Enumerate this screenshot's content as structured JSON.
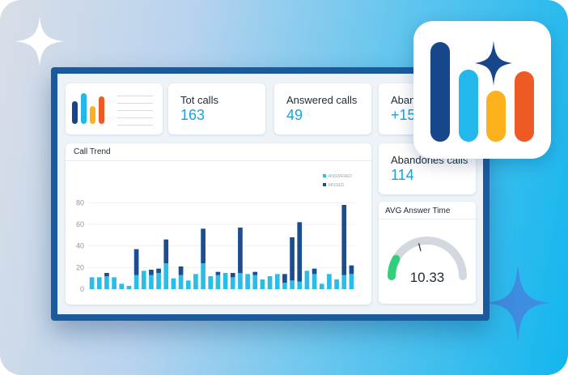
{
  "colors": {
    "answered": "#2bbde9",
    "missed": "#1c4e8f",
    "accent_blue": "#1aa3d6",
    "logo_navy": "#17478a",
    "logo_cyan": "#22b8ec",
    "logo_yellow": "#fbb21c",
    "logo_orange": "#ef5a24",
    "gauge_green": "#2fcf7c"
  },
  "icons": [
    "four-point-sparkle-icon",
    "app-logo-icon"
  ],
  "stats": [
    {
      "title": "Tot calls",
      "value": "163"
    },
    {
      "title": "Answered calls",
      "value": "49"
    },
    {
      "title": "Aban",
      "value": "+15"
    },
    {
      "title": "Abandones calls",
      "value": "114"
    }
  ],
  "trend_panel": {
    "title": "Call Trend"
  },
  "gauge": {
    "title": "AVG Answer Time",
    "value": "10.33",
    "level_fraction": 0.16
  },
  "chart_data": {
    "type": "bar",
    "stacked": true,
    "title": "Call Trend",
    "ylim": [
      0,
      90
    ],
    "yticks": [
      0,
      20,
      40,
      60,
      80
    ],
    "legend_position": "top-right",
    "series": [
      {
        "name": "ANSWERED",
        "values": [
          11,
          11,
          12,
          11,
          5,
          3,
          13,
          17,
          13,
          15,
          24,
          10,
          13,
          8,
          14,
          24,
          12,
          13,
          15,
          11,
          15,
          14,
          13,
          9,
          12,
          14,
          6,
          8,
          7,
          17,
          14,
          5,
          14,
          9,
          13,
          14
        ]
      },
      {
        "name": "MISSED",
        "values": [
          0,
          0,
          3,
          0,
          0,
          0,
          24,
          0,
          5,
          4,
          22,
          0,
          8,
          0,
          0,
          32,
          0,
          3,
          0,
          4,
          42,
          0,
          3,
          0,
          0,
          0,
          8,
          40,
          55,
          0,
          5,
          0,
          0,
          0,
          65,
          8
        ]
      }
    ]
  }
}
